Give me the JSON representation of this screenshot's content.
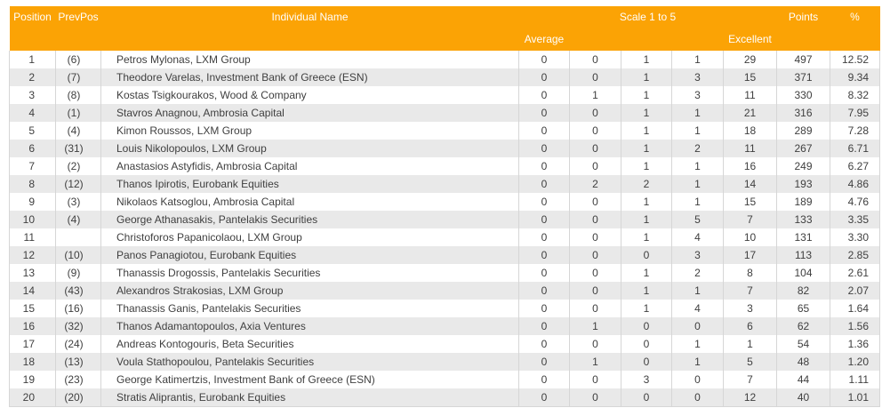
{
  "colors": {
    "header_bg": "#FBA305",
    "header_text": "#FFFFFF",
    "stripe_bg": "#E9E9E9",
    "border": "#D6D6D6",
    "text": "#3F3F3F"
  },
  "table": {
    "header": {
      "position": "Position",
      "prev_pos": "PrevPos",
      "individual_name": "Individual Name",
      "scale_group": "Scale 1 to 5",
      "scale_low_label": "Average",
      "scale_high_label": "Excellent",
      "points": "Points",
      "percent": "%"
    },
    "rows": [
      {
        "position": "1",
        "prev_pos": "(6)",
        "name": "Petros Mylonas, LXM Group",
        "scale": [
          "0",
          "0",
          "1",
          "1",
          "29"
        ],
        "points": "497",
        "percent": "12.52"
      },
      {
        "position": "2",
        "prev_pos": "(7)",
        "name": "Theodore Varelas, Investment Bank of Greece (ESN)",
        "scale": [
          "0",
          "0",
          "1",
          "3",
          "15"
        ],
        "points": "371",
        "percent": "9.34"
      },
      {
        "position": "3",
        "prev_pos": "(8)",
        "name": "Kostas Tsigkourakos, Wood & Company",
        "scale": [
          "0",
          "1",
          "1",
          "3",
          "11"
        ],
        "points": "330",
        "percent": "8.32"
      },
      {
        "position": "4",
        "prev_pos": "(1)",
        "name": "Stavros Anagnou, Ambrosia Capital",
        "scale": [
          "0",
          "0",
          "1",
          "1",
          "21"
        ],
        "points": "316",
        "percent": "7.95"
      },
      {
        "position": "5",
        "prev_pos": "(4)",
        "name": "Kimon Roussos, LXM Group",
        "scale": [
          "0",
          "0",
          "1",
          "1",
          "18"
        ],
        "points": "289",
        "percent": "7.28"
      },
      {
        "position": "6",
        "prev_pos": "(31)",
        "name": "Louis Nikolopoulos, LXM Group",
        "scale": [
          "0",
          "0",
          "1",
          "2",
          "11"
        ],
        "points": "267",
        "percent": "6.71"
      },
      {
        "position": "7",
        "prev_pos": "(2)",
        "name": "Anastasios Astyfidis, Ambrosia Capital",
        "scale": [
          "0",
          "0",
          "1",
          "1",
          "16"
        ],
        "points": "249",
        "percent": "6.27"
      },
      {
        "position": "8",
        "prev_pos": "(12)",
        "name": "Thanos Ipirotis, Eurobank Equities",
        "scale": [
          "0",
          "2",
          "2",
          "1",
          "14"
        ],
        "points": "193",
        "percent": "4.86"
      },
      {
        "position": "9",
        "prev_pos": "(3)",
        "name": "Nikolaos Katsoglou, Ambrosia Capital",
        "scale": [
          "0",
          "0",
          "1",
          "1",
          "15"
        ],
        "points": "189",
        "percent": "4.76"
      },
      {
        "position": "10",
        "prev_pos": "(4)",
        "name": "George Athanasakis, Pantelakis Securities",
        "scale": [
          "0",
          "0",
          "1",
          "5",
          "7"
        ],
        "points": "133",
        "percent": "3.35"
      },
      {
        "position": "11",
        "prev_pos": "",
        "name": "Christoforos Papanicolaou, LXM Group",
        "scale": [
          "0",
          "0",
          "1",
          "4",
          "10"
        ],
        "points": "131",
        "percent": "3.30"
      },
      {
        "position": "12",
        "prev_pos": "(10)",
        "name": "Panos Panagiotou, Eurobank Equities",
        "scale": [
          "0",
          "0",
          "0",
          "3",
          "17"
        ],
        "points": "113",
        "percent": "2.85"
      },
      {
        "position": "13",
        "prev_pos": "(9)",
        "name": "Thanassis Drogossis, Pantelakis Securities",
        "scale": [
          "0",
          "0",
          "1",
          "2",
          "8"
        ],
        "points": "104",
        "percent": "2.61"
      },
      {
        "position": "14",
        "prev_pos": "(43)",
        "name": "Alexandros Strakosias, LXM Group",
        "scale": [
          "0",
          "0",
          "1",
          "1",
          "7"
        ],
        "points": "82",
        "percent": "2.07"
      },
      {
        "position": "15",
        "prev_pos": "(16)",
        "name": "Thanassis Ganis, Pantelakis Securities",
        "scale": [
          "0",
          "0",
          "1",
          "4",
          "3"
        ],
        "points": "65",
        "percent": "1.64"
      },
      {
        "position": "16",
        "prev_pos": "(32)",
        "name": "Thanos Adamantopoulos, Axia Ventures",
        "scale": [
          "0",
          "1",
          "0",
          "0",
          "6"
        ],
        "points": "62",
        "percent": "1.56"
      },
      {
        "position": "17",
        "prev_pos": "(24)",
        "name": "Andreas Kontogouris, Beta Securities",
        "scale": [
          "0",
          "0",
          "0",
          "1",
          "1"
        ],
        "points": "54",
        "percent": "1.36"
      },
      {
        "position": "18",
        "prev_pos": "(13)",
        "name": "Voula Stathopoulou, Pantelakis Securities",
        "scale": [
          "0",
          "1",
          "0",
          "1",
          "5"
        ],
        "points": "48",
        "percent": "1.20"
      },
      {
        "position": "19",
        "prev_pos": "(23)",
        "name": "George Katimertzis, Investment Bank of Greece (ESN)",
        "scale": [
          "0",
          "0",
          "3",
          "0",
          "7"
        ],
        "points": "44",
        "percent": "1.11"
      },
      {
        "position": "20",
        "prev_pos": "(20)",
        "name": "Stratis Aliprantis, Eurobank Equities",
        "scale": [
          "0",
          "0",
          "0",
          "0",
          "12"
        ],
        "points": "40",
        "percent": "1.01"
      }
    ]
  }
}
